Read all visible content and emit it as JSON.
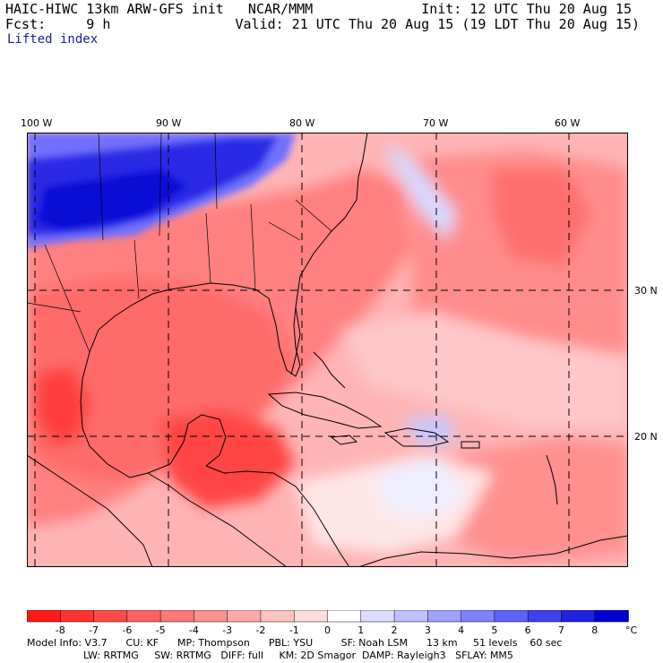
{
  "header": {
    "model_line": "HAIC-HIWC 13km ARW-GFS init   NCAR/MMM",
    "init": "Init: 12 UTC Thu 20 Aug 15",
    "fcst": "Fcst:     9 h",
    "valid": "Valid: 21 UTC Thu 20 Aug 15 (19 LDT Thu 20 Aug 15)",
    "field": "Lifted index"
  },
  "map": {
    "lon_labels": [
      "100 W",
      "90 W",
      "80 W",
      "70 W",
      "60 W"
    ],
    "lat_labels": [
      "30 N",
      "20 N"
    ],
    "lon_range": [
      -100,
      -59
    ],
    "lat_range": [
      10,
      39
    ]
  },
  "colorbar": {
    "units": "°C",
    "tick_labels": [
      "-8",
      "-7",
      "-6",
      "-5",
      "-4",
      "-3",
      "-2",
      "-1",
      "0",
      "1",
      "2",
      "3",
      "4",
      "5",
      "6",
      "7",
      "8"
    ],
    "colors": [
      "#ff1a1a",
      "#ff3030",
      "#ff4a4a",
      "#ff6060",
      "#ff7878",
      "#ff9090",
      "#ffa8a8",
      "#ffc2c2",
      "#ffdcdc",
      "#ffffff",
      "#dcdcff",
      "#c0c0ff",
      "#a0a0ff",
      "#8080ff",
      "#6060ff",
      "#4040f0",
      "#2020e0",
      "#0000d0"
    ]
  },
  "footer": {
    "line1": "Model Info: V3.7      CU: KF      MP: Thompson      PBL: YSU         SF: Noah LSM      13 km     51 levels    60 sec",
    "line2": "                  LW: RRTMG     SW: RRTMG   DIFF: full     KM: 2D Smagor  DAMP: Rayleigh3   SFLAY: MM5"
  }
}
